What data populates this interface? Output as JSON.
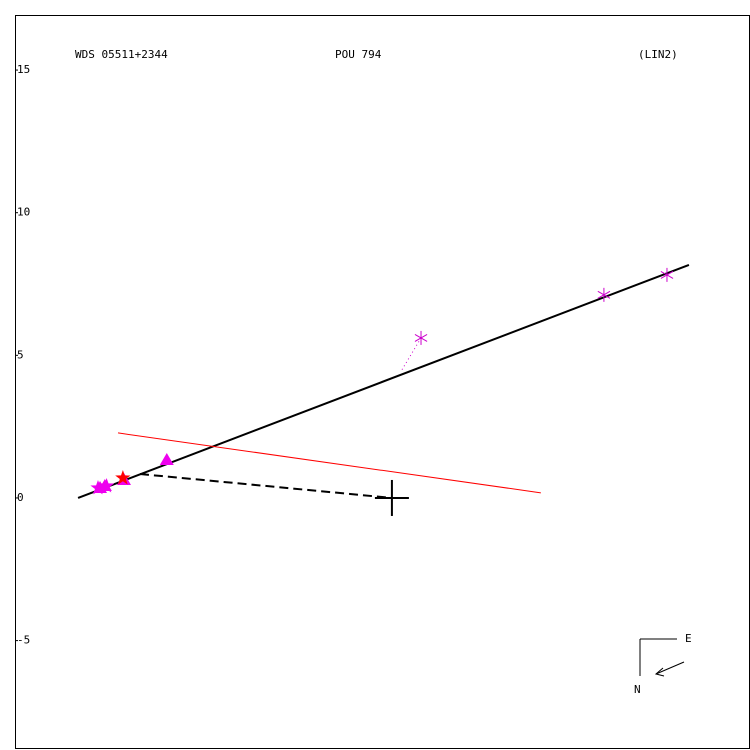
{
  "chart_data": {
    "type": "scatter",
    "title": "WDS 05511+2344",
    "subtitle": "POU 794",
    "annotation": "(LIN2)",
    "xlim": [
      -13.21,
      12.55
    ],
    "ylim": [
      -8.8,
      16.93
    ],
    "yticks": [
      15,
      10,
      5,
      0,
      -5
    ],
    "series": [
      {
        "marker": "line",
        "line_style": "solid",
        "color": "#000000",
        "x": [
          -11.0,
          10.41
        ],
        "values": [
          0,
          8.17
        ]
      },
      {
        "marker": "line",
        "line_style": "solid",
        "color": "#ff0000",
        "x": [
          -9.6,
          5.22
        ],
        "values": [
          2.28,
          0.18
        ]
      },
      {
        "marker": "line",
        "line_style": "dashed",
        "color": "#000000",
        "x": [
          -8.83,
          0
        ],
        "values": [
          0.84,
          0
        ]
      },
      {
        "marker": "line",
        "line_style": "dotted",
        "color": "#cc00cc",
        "x": [
          1.02,
          0.35
        ],
        "values": [
          5.61,
          4.49
        ]
      },
      {
        "marker": "asterisk",
        "color": "#cc00cc",
        "x": [
          1.02,
          7.43,
          9.64
        ],
        "values": [
          5.61,
          7.12,
          7.82
        ]
      },
      {
        "marker": "triangle",
        "color": "#ee00ee",
        "x": [
          -7.89,
          -9.39,
          -10.06,
          -10.23
        ],
        "values": [
          1.33,
          0.63,
          0.42,
          0.35
        ]
      },
      {
        "marker": "star",
        "color": "#ee00ee",
        "x": [
          -10.3,
          -10.0
        ],
        "values": [
          0.35,
          0.42
        ]
      },
      {
        "marker": "star",
        "color": "#ff0000",
        "x": [
          -9.43
        ],
        "values": [
          0.7
        ]
      },
      {
        "marker": "cross",
        "color": "#000000",
        "x": [
          0
        ],
        "values": [
          0
        ]
      }
    ]
  },
  "compass": {
    "east": "E",
    "north": "N"
  }
}
